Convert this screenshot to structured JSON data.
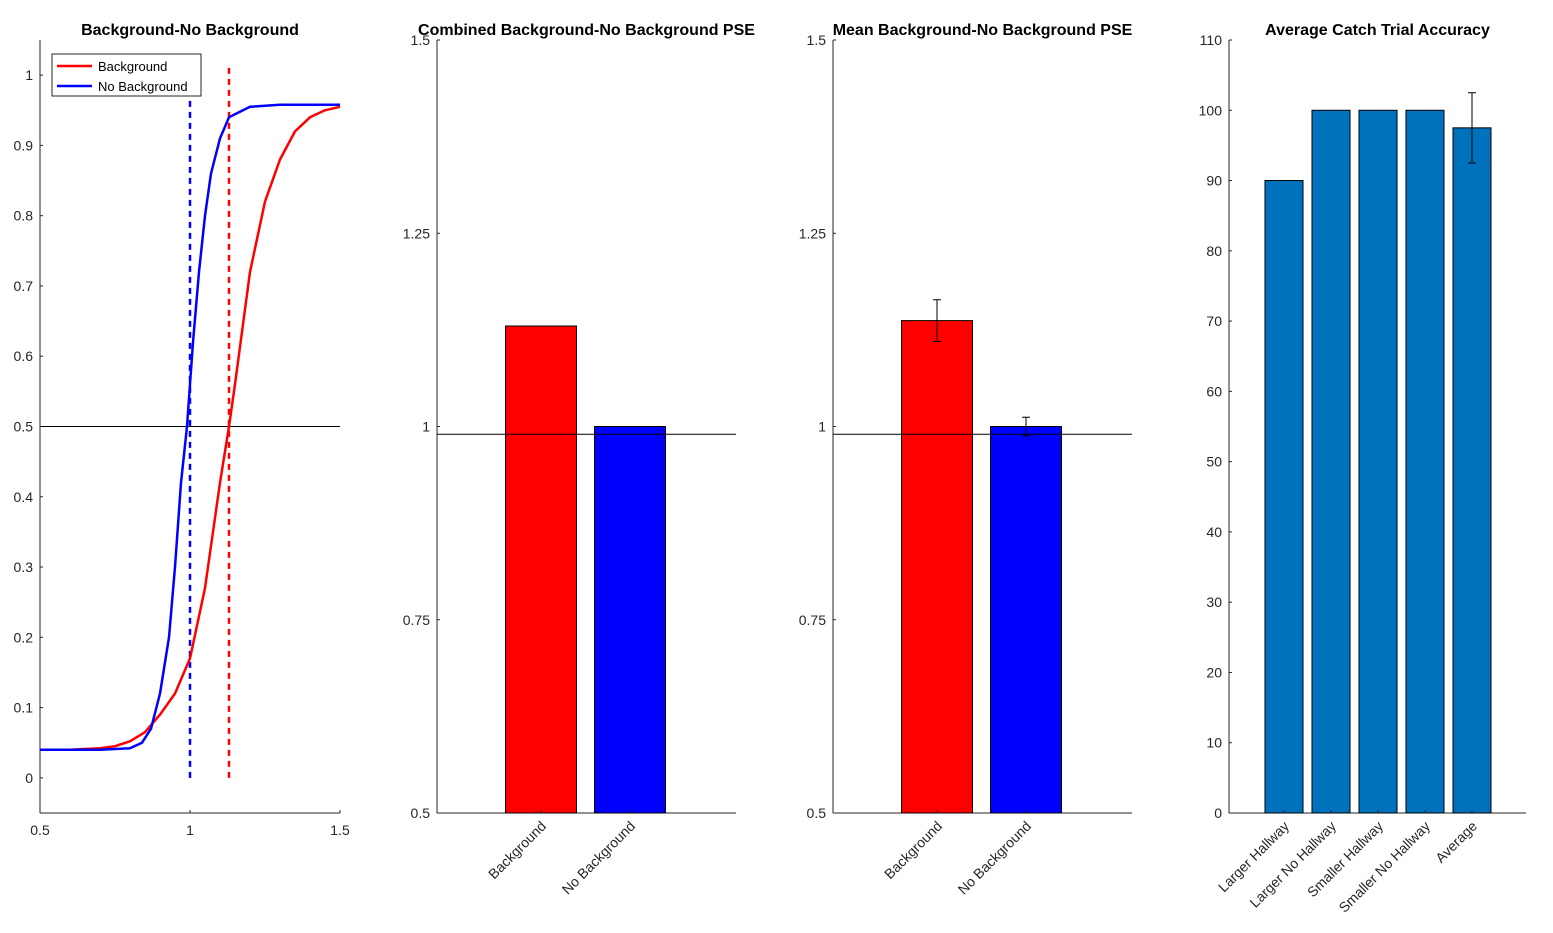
{
  "chart_data": [
    {
      "type": "line",
      "title": "Background-No Background",
      "xlim": [
        0.5,
        1.5
      ],
      "ylim": [
        -0.05,
        1.05
      ],
      "x_ticks": [
        "0.5",
        "1",
        "1.5"
      ],
      "y_ticks": [
        "0",
        "0.1",
        "0.2",
        "0.3",
        "0.4",
        "0.5",
        "0.6",
        "0.7",
        "0.8",
        "0.9",
        "1"
      ],
      "legend_position": "top-left",
      "colors": {
        "Background": "#ff0000",
        "No Background": "#0000ff",
        "reference": "#000000"
      },
      "series": [
        {
          "name": "Background",
          "x": [
            0.5,
            0.6,
            0.7,
            0.75,
            0.8,
            0.85,
            0.9,
            0.95,
            1.0,
            1.05,
            1.1,
            1.13,
            1.15,
            1.2,
            1.25,
            1.3,
            1.35,
            1.4,
            1.45,
            1.5
          ],
          "y": [
            0.04,
            0.04,
            0.042,
            0.045,
            0.052,
            0.065,
            0.09,
            0.12,
            0.17,
            0.27,
            0.42,
            0.5,
            0.56,
            0.72,
            0.82,
            0.88,
            0.92,
            0.94,
            0.95,
            0.955
          ]
        },
        {
          "name": "No Background",
          "x": [
            0.5,
            0.7,
            0.8,
            0.84,
            0.87,
            0.9,
            0.93,
            0.95,
            0.97,
            0.99,
            1.0,
            1.01,
            1.03,
            1.05,
            1.07,
            1.1,
            1.13,
            1.2,
            1.3,
            1.5
          ],
          "y": [
            0.04,
            0.04,
            0.042,
            0.05,
            0.07,
            0.12,
            0.2,
            0.3,
            0.42,
            0.5,
            0.56,
            0.62,
            0.72,
            0.8,
            0.86,
            0.91,
            0.94,
            0.955,
            0.958,
            0.958
          ]
        }
      ],
      "pse": {
        "Background": 1.13,
        "No Background": 1.0
      },
      "reference_y": 0.5,
      "pse_line_range": [
        0.0,
        1.0
      ]
    },
    {
      "type": "bar",
      "title": "Combined Background-No Background PSE",
      "categories": [
        "Background",
        "No Background"
      ],
      "values": [
        1.13,
        1.0
      ],
      "colors": [
        "#ff0000",
        "#0000ff"
      ],
      "ylim": [
        0.5,
        1.5
      ],
      "y_ticks": [
        "0.5",
        "0.75",
        "1",
        "1.25",
        "1.5"
      ],
      "reference_y": 0.99
    },
    {
      "type": "bar",
      "title": "Mean Background-No Background PSE",
      "categories": [
        "Background",
        "No Background"
      ],
      "values": [
        1.137,
        1.0
      ],
      "errors": [
        0.027,
        0.012
      ],
      "colors": [
        "#ff0000",
        "#0000ff"
      ],
      "ylim": [
        0.5,
        1.5
      ],
      "y_ticks": [
        "0.5",
        "0.75",
        "1",
        "1.25",
        "1.5"
      ],
      "reference_y": 0.99
    },
    {
      "type": "bar",
      "title": "Average Catch Trial Accuracy",
      "categories": [
        "Larger Hallway",
        "Larger No Hallway",
        "Smaller Hallway",
        "Smaller No Hallway",
        "Average"
      ],
      "values": [
        90,
        100,
        100,
        100,
        97.5
      ],
      "errors": [
        null,
        null,
        null,
        null,
        5
      ],
      "colors": [
        "#0072bd",
        "#0072bd",
        "#0072bd",
        "#0072bd",
        "#0072bd"
      ],
      "ylim": [
        0,
        110
      ],
      "y_ticks": [
        "0",
        "10",
        "20",
        "30",
        "40",
        "50",
        "60",
        "70",
        "80",
        "90",
        "100",
        "110"
      ]
    }
  ]
}
